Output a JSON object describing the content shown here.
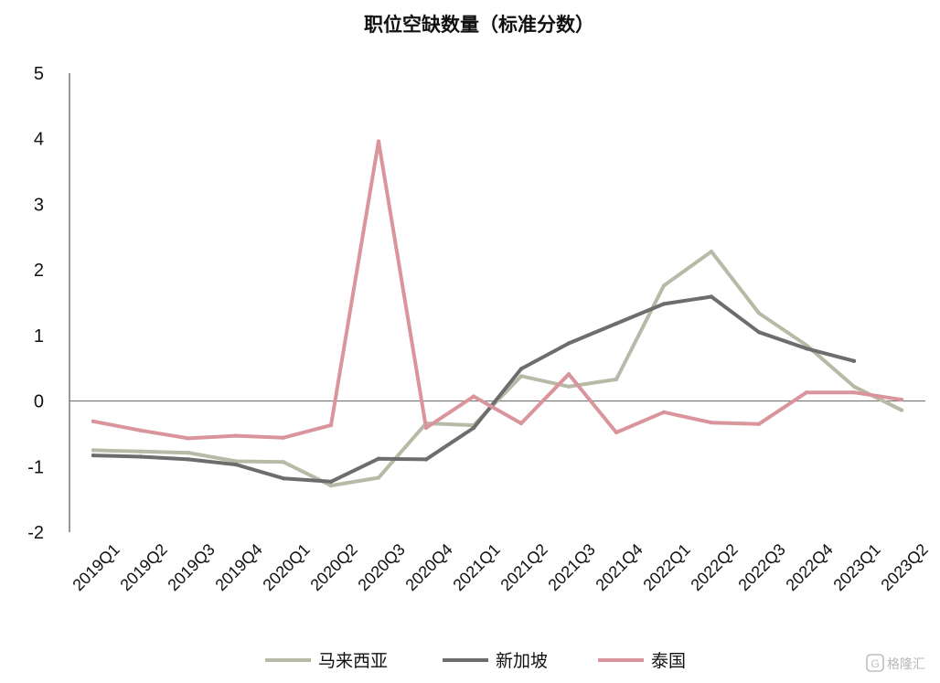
{
  "chart_data": {
    "type": "line",
    "title": "职位空缺数量（标准分数）",
    "xlabel": "",
    "ylabel": "",
    "ylim": [
      -2,
      5
    ],
    "yticks": [
      "5",
      "4",
      "3",
      "2",
      "1",
      "0",
      "-1",
      "-2"
    ],
    "categories": [
      "2019Q1",
      "2019Q2",
      "2019Q3",
      "2019Q4",
      "2020Q1",
      "2020Q2",
      "2020Q3",
      "2020Q4",
      "2021Q1",
      "2021Q2",
      "2021Q3",
      "2021Q4",
      "2022Q1",
      "2022Q2",
      "2022Q3",
      "2022Q4",
      "2023Q1",
      "2023Q2"
    ],
    "series": [
      {
        "name": "马来西亚",
        "color": "#b9b9a7",
        "values": [
          -0.75,
          -0.77,
          -0.79,
          -0.92,
          -0.93,
          -1.29,
          -1.17,
          -0.34,
          -0.37,
          0.38,
          0.22,
          0.33,
          1.76,
          2.28,
          1.34,
          0.85,
          0.22,
          -0.14
        ]
      },
      {
        "name": "新加坡",
        "color": "#6d6d6d",
        "values": [
          -0.83,
          -0.85,
          -0.89,
          -0.97,
          -1.18,
          -1.23,
          -0.88,
          -0.89,
          -0.41,
          0.49,
          0.88,
          1.18,
          1.48,
          1.59,
          1.05,
          0.8,
          0.61,
          null
        ]
      },
      {
        "name": "泰国",
        "color": "#d9959b",
        "values": [
          -0.31,
          -0.45,
          -0.57,
          -0.53,
          -0.56,
          -0.37,
          3.96,
          -0.41,
          0.07,
          -0.34,
          0.41,
          -0.48,
          -0.17,
          -0.33,
          -0.35,
          0.13,
          0.13,
          0.02
        ]
      }
    ],
    "grid": false,
    "legend_position": "bottom-center"
  },
  "watermark": {
    "text": "格隆汇",
    "icon": "glh-logo-icon"
  }
}
